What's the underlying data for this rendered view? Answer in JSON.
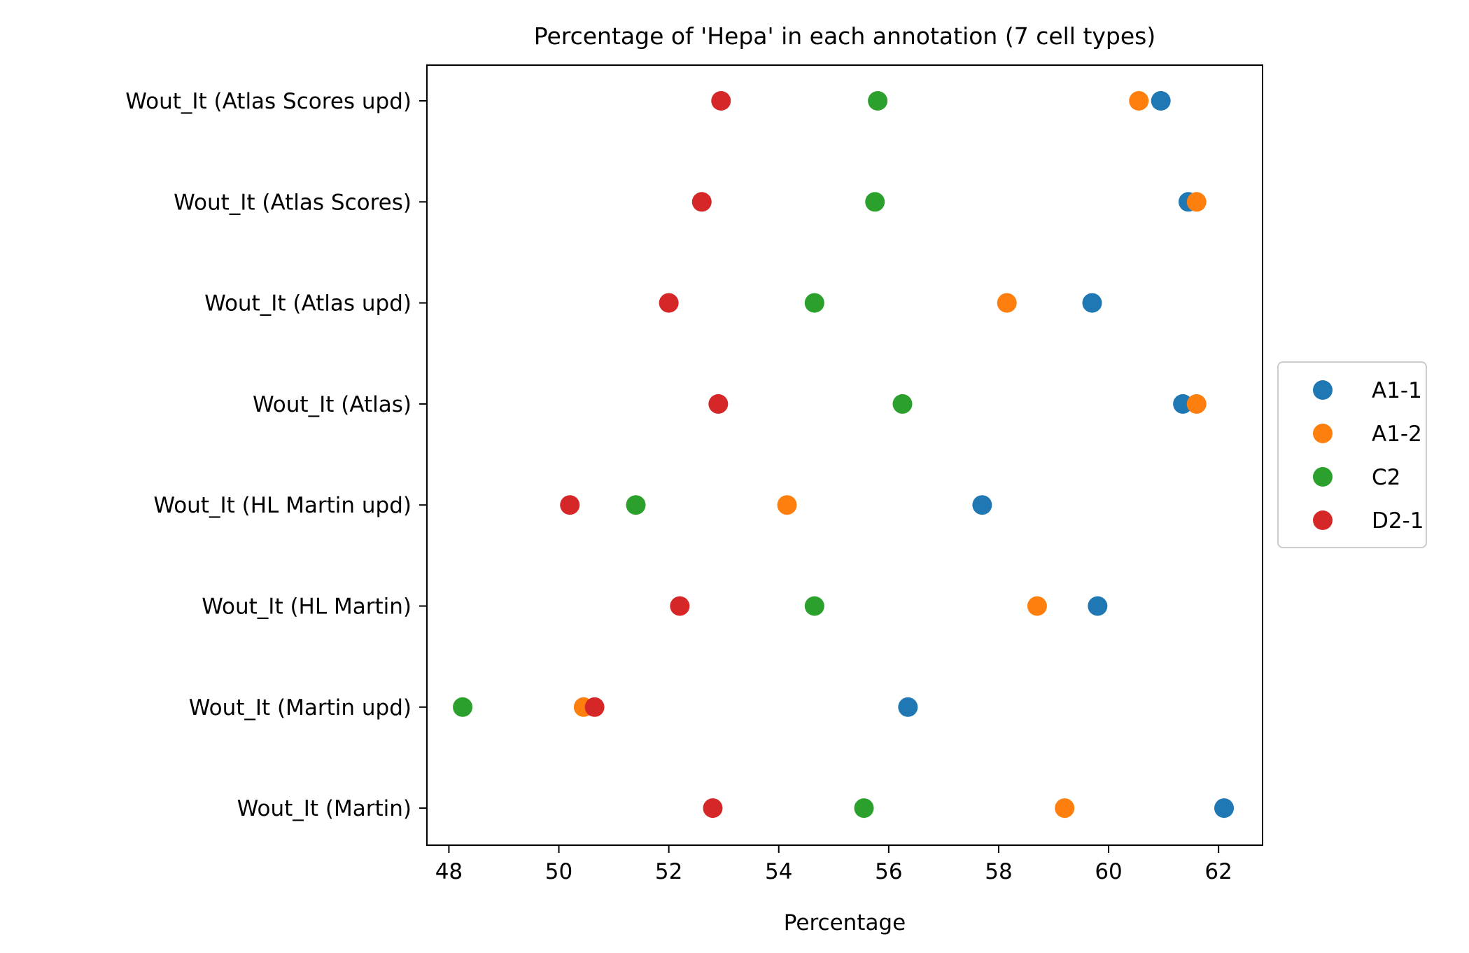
{
  "chart_data": {
    "type": "scatter",
    "title": "Percentage of 'Hepa' in each annotation (7 cell types)",
    "xlabel": "Percentage",
    "ylabel": "",
    "xlim": [
      47.6,
      62.8
    ],
    "xticks": [
      48,
      50,
      52,
      54,
      56,
      58,
      60,
      62
    ],
    "categories": [
      "Wout_It (Atlas Scores upd)",
      "Wout_It (Atlas Scores)",
      "Wout_It (Atlas upd)",
      "Wout_It (Atlas)",
      "Wout_It (HL Martin upd)",
      "Wout_It (HL Martin)",
      "Wout_It (Martin upd)",
      "Wout_It (Martin)"
    ],
    "series": [
      {
        "name": "A1-1",
        "color": "#1f77b4",
        "values": [
          60.95,
          61.45,
          59.7,
          61.35,
          57.7,
          59.8,
          56.35,
          62.1
        ]
      },
      {
        "name": "A1-2",
        "color": "#ff7f0e",
        "values": [
          60.55,
          61.6,
          58.15,
          61.6,
          54.15,
          58.7,
          50.45,
          59.2
        ]
      },
      {
        "name": "C2",
        "color": "#2ca02c",
        "values": [
          55.8,
          55.75,
          54.65,
          56.25,
          51.4,
          54.65,
          48.25,
          55.55
        ]
      },
      {
        "name": "D2-1",
        "color": "#d62728",
        "values": [
          52.95,
          52.6,
          52.0,
          52.9,
          50.2,
          52.2,
          50.65,
          52.8
        ]
      }
    ],
    "legend_position": "center-right",
    "grid": false
  }
}
